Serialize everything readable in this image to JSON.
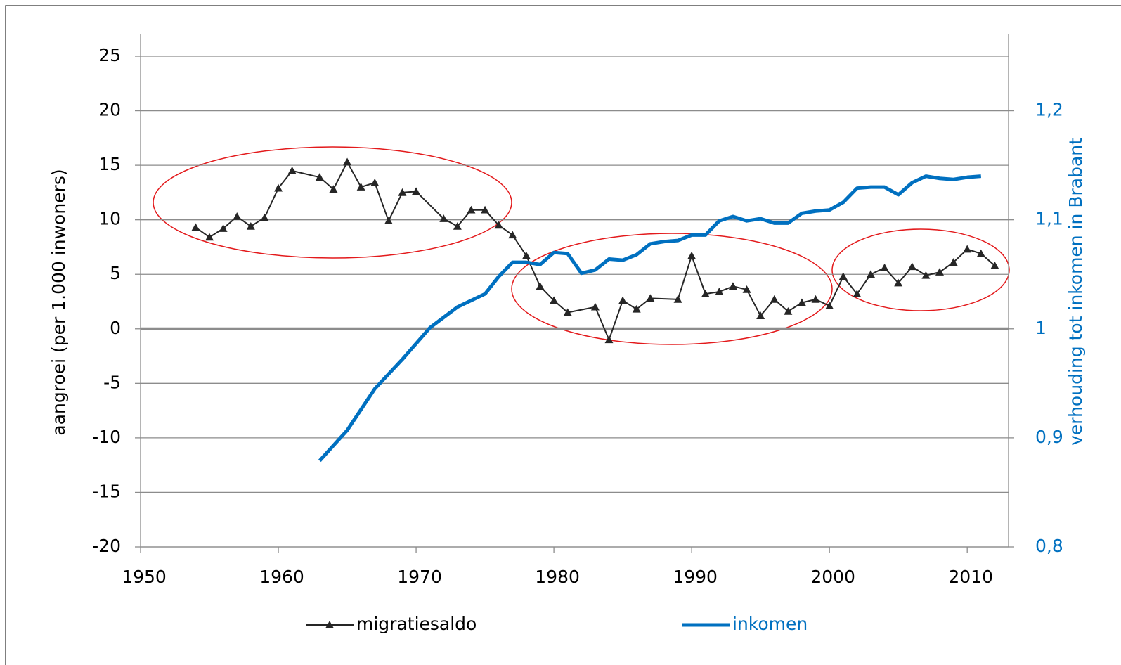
{
  "chart_data": {
    "type": "line",
    "ylabel": "aangroei (per 1.000 inwoners)",
    "y2label": "verhouding tot inkomen in Brabant",
    "xlim": [
      1950,
      2013
    ],
    "xticks": [
      1950,
      1960,
      1970,
      1980,
      1990,
      2000,
      2010
    ],
    "ylim": [
      -20,
      25
    ],
    "yticks": [
      -20,
      -15,
      -10,
      -5,
      0,
      5,
      10,
      15,
      20,
      25
    ],
    "y2lim": [
      0.8,
      1.25
    ],
    "y2ticks": [
      {
        "value": 0.8,
        "label": "0,8"
      },
      {
        "value": 0.9,
        "label": "0,9"
      },
      1,
      {
        "value": 1.1,
        "label": "1,1"
      },
      {
        "value": 1.2,
        "label": "1,2"
      }
    ],
    "grid": true,
    "legend": "bottom",
    "series": [
      {
        "name": "migratiesaldo",
        "color": "#262626",
        "marker": "triangle",
        "x": [
          1954,
          1955,
          1956,
          1957,
          1958,
          1959,
          1960,
          1961,
          1963,
          1964,
          1965,
          1966,
          1967,
          1968,
          1969,
          1970,
          1972,
          1973,
          1974,
          1975,
          1976,
          1977,
          1978,
          1979,
          1980,
          1981,
          1983,
          1984,
          1985,
          1986,
          1987,
          1989,
          1990,
          1991,
          1992,
          1993,
          1994,
          1995,
          1996,
          1997,
          1998,
          1999,
          2000,
          2001,
          2002,
          2003,
          2004,
          2005,
          2006,
          2007,
          2008,
          2009,
          2010,
          2011,
          2012
        ],
        "values": [
          9.3,
          8.4,
          9.2,
          10.3,
          9.4,
          10.2,
          12.9,
          14.5,
          13.9,
          12.8,
          15.3,
          13.0,
          13.4,
          9.9,
          12.5,
          12.6,
          10.1,
          9.4,
          10.9,
          10.9,
          9.5,
          8.6,
          6.7,
          3.9,
          2.6,
          1.5,
          2.0,
          -1.0,
          2.6,
          1.8,
          2.8,
          2.7,
          6.7,
          3.2,
          3.4,
          3.9,
          3.6,
          1.2,
          2.7,
          1.6,
          2.4,
          2.7,
          2.1,
          4.8,
          3.2,
          5.0,
          5.6,
          4.2,
          5.7,
          4.9,
          5.2,
          6.1,
          7.3,
          6.9,
          5.8
        ]
      },
      {
        "name": "inkomen",
        "color": "#0070c0",
        "axis": "y2",
        "x": [
          1963,
          1965,
          1967,
          1969,
          1971,
          1973,
          1975,
          1976,
          1977,
          1978,
          1979,
          1980,
          1981,
          1982,
          1983,
          1984,
          1985,
          1986,
          1987,
          1988,
          1989,
          1990,
          1991,
          1992,
          1993,
          1994,
          1995,
          1996,
          1997,
          1998,
          1999,
          2000,
          2001,
          2002,
          2003,
          2004,
          2005,
          2006,
          2007,
          2008,
          2009,
          2010,
          2011
        ],
        "values": [
          0.879,
          0.907,
          0.945,
          0.972,
          1.001,
          1.02,
          1.032,
          1.048,
          1.061,
          1.061,
          1.059,
          1.07,
          1.069,
          1.051,
          1.054,
          1.064,
          1.063,
          1.068,
          1.078,
          1.08,
          1.081,
          1.086,
          1.086,
          1.099,
          1.103,
          1.099,
          1.101,
          1.097,
          1.097,
          1.106,
          1.108,
          1.109,
          1.116,
          1.129,
          1.13,
          1.13,
          1.123,
          1.134,
          1.14,
          1.138,
          1.137,
          1.139,
          1.14
        ]
      }
    ]
  }
}
